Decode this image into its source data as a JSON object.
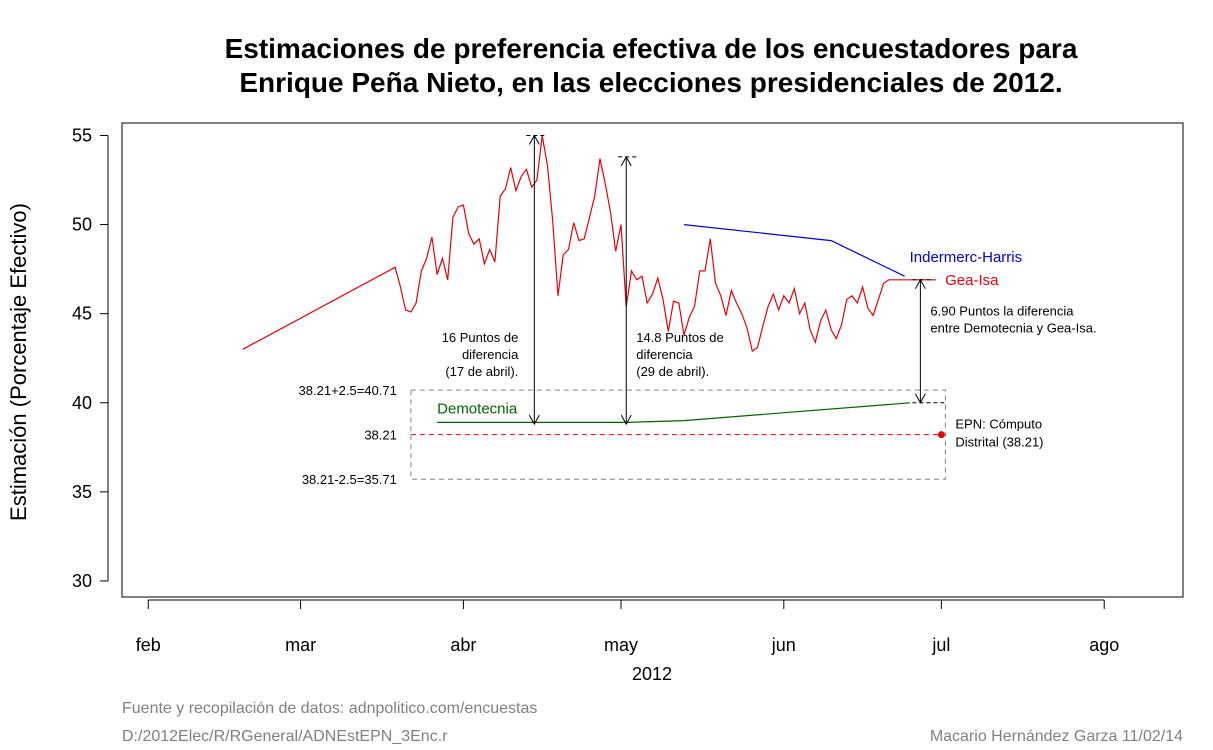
{
  "chart_data": {
    "type": "line",
    "title_lines": [
      "Estimaciones de preferencia efectiva de los encuestadores para",
      "Enrique Peña Nieto, en las elecciones presidenciales de 2012."
    ],
    "ylabel": "Estimación (Porcentaje Efectivo)",
    "xlabel": "2012",
    "ylim": [
      29.1,
      55.7
    ],
    "xlim_days": [
      -5,
      197
    ],
    "y_ticks": [
      30,
      35,
      40,
      45,
      50,
      55
    ],
    "x_ticks": [
      {
        "label": "feb",
        "day": 0
      },
      {
        "label": "mar",
        "day": 29
      },
      {
        "label": "abr",
        "day": 60
      },
      {
        "label": "may",
        "day": 90
      },
      {
        "label": "jun",
        "day": 121
      },
      {
        "label": "jul",
        "day": 151
      },
      {
        "label": "ago",
        "day": 182
      }
    ],
    "series": [
      {
        "name": "Gea-Isa",
        "color": "#e8000b",
        "x": [
          18,
          47,
          48,
          49,
          50,
          51,
          52,
          53,
          54,
          55,
          56,
          57,
          58,
          59,
          60,
          61,
          62,
          63,
          64,
          65,
          66,
          67,
          68,
          69,
          70,
          71,
          72,
          73,
          74,
          75,
          76,
          77,
          78,
          79,
          80,
          81,
          82,
          83,
          84,
          85,
          86,
          87,
          88,
          89,
          90,
          91,
          92,
          93,
          94,
          95,
          96,
          97,
          98,
          99,
          100,
          101,
          102,
          103,
          104,
          105,
          106,
          107,
          108,
          109,
          110,
          111,
          112,
          113,
          114,
          115,
          116,
          117,
          118,
          119,
          120,
          121,
          122,
          123,
          124,
          125,
          126,
          127,
          128,
          129,
          130,
          131,
          132,
          133,
          134,
          135,
          136,
          137,
          138,
          139,
          140,
          141,
          142,
          143,
          144,
          145,
          146,
          147,
          148,
          149,
          150
        ],
        "values": [
          43.0,
          47.6,
          46.5,
          45.2,
          45.1,
          45.6,
          47.4,
          48.1,
          49.3,
          47.2,
          48.1,
          46.9,
          50.4,
          51.0,
          51.1,
          49.5,
          48.9,
          49.2,
          47.8,
          48.6,
          47.9,
          51.6,
          52.0,
          53.2,
          51.9,
          52.7,
          53.1,
          52.1,
          52.5,
          55.0,
          53.3,
          50.2,
          46.0,
          48.3,
          48.6,
          50.1,
          49.1,
          49.2,
          50.4,
          51.6,
          53.7,
          52.3,
          50.7,
          48.5,
          50.0,
          45.4,
          47.4,
          46.9,
          47.1,
          45.6,
          46.1,
          47.0,
          45.8,
          44.0,
          45.7,
          45.6,
          43.8,
          44.8,
          45.4,
          47.4,
          47.4,
          49.2,
          46.7,
          46.0,
          44.9,
          46.3,
          45.6,
          45.0,
          44.2,
          42.9,
          43.1,
          44.3,
          45.4,
          46.1,
          45.2,
          46.0,
          45.6,
          46.4,
          45.0,
          45.6,
          44.1,
          43.4,
          44.6,
          45.2,
          44.1,
          43.6,
          44.4,
          45.8,
          46.0,
          45.6,
          46.5,
          45.3,
          44.9,
          45.8,
          46.7,
          46.9,
          46.9,
          46.9,
          46.9,
          46.9,
          46.9,
          46.9,
          46.9,
          46.9,
          46.9
        ]
      },
      {
        "name": "Indermerc-Harris",
        "color": "#0000cc",
        "x": [
          102,
          130,
          144
        ],
        "values": [
          50.0,
          49.1,
          47.1
        ]
      },
      {
        "name": "Demotecnia",
        "color": "#006400",
        "x": [
          55,
          74,
          91,
          102,
          145
        ],
        "values": [
          38.9,
          38.9,
          38.9,
          39.0,
          40.0
        ]
      }
    ],
    "reference": {
      "value": 38.21,
      "label": "38.21",
      "upper": 40.71,
      "lower": 35.71,
      "upper_label": "38.21+2.5=40.71",
      "lower_label": "38.21-2.5=35.71",
      "band_start_day": 50,
      "band_end_day": 151,
      "point_day": 151,
      "point_label_lines": [
        "EPN: Cómputo",
        "Distrital (38.21)"
      ],
      "color": "#e8000b",
      "band_color": "#808080"
    },
    "annotations": [
      {
        "day": 73.5,
        "from": 38.8,
        "to": 55.0,
        "lines": [
          "16 Puntos de",
          "diferencia",
          "(17 de abril)."
        ],
        "align": "right"
      },
      {
        "day": 91,
        "from": 38.8,
        "to": 53.8,
        "lines": [
          "14.8 Puntos de",
          "diferencia",
          "(29 de abril)."
        ],
        "align": "left"
      },
      {
        "day": 147,
        "from": 40.0,
        "to": 46.9,
        "lines": [
          "6.90 Puntos la diferencia",
          "entre Demotecnia y Gea-Isa."
        ],
        "align": "left"
      }
    ],
    "series_labels": {
      "Gea-Isa": "Gea-Isa",
      "Indermerc-Harris": "Indermerc-Harris",
      "Demotecnia": "Demotecnia"
    }
  },
  "footer": {
    "source": "Fuente y recopilación de datos: adnpolitico.com/encuestas",
    "path": "D:/2012Elec/R/RGeneral/ADNEstEPN_3Enc.r",
    "author": "Macario Hernández Garza  11/02/14"
  }
}
